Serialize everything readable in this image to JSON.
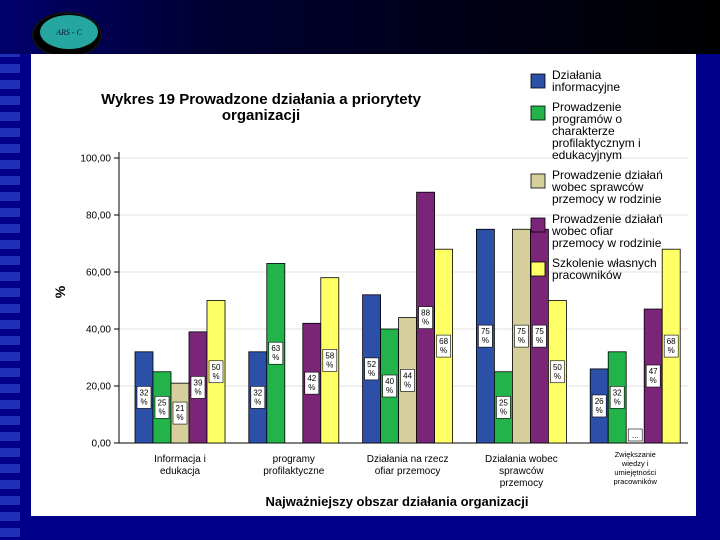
{
  "slide": {
    "logo_text": "ARS - C",
    "colors": {
      "background": "#00008b",
      "panel": "#ffffff"
    }
  },
  "chart_data": {
    "type": "bar",
    "title": [
      "Wykres 19 Prowadzone działania a priorytety",
      "organizacji"
    ],
    "xlabel": "Najważniejszy obszar działania organizacji",
    "ylabel": "%",
    "ylim": [
      0,
      100
    ],
    "yticks": [
      "0,00",
      "20,00",
      "40,00",
      "60,00",
      "80,00",
      "100,00"
    ],
    "categories": [
      [
        "Informacja i",
        "edukacja"
      ],
      [
        "programy",
        "profilaktyczne"
      ],
      [
        "Działania na rzecz",
        "ofiar przemocy"
      ],
      [
        "Działania wobec",
        "sprawców",
        "przemocy"
      ],
      [
        "Zwiększanie",
        "wiedzy i",
        "umiejętności",
        "pracowników"
      ]
    ],
    "series": [
      {
        "name": [
          "Działania",
          "informacyjne"
        ],
        "color": "#2c4fa8",
        "values": [
          32,
          32,
          52,
          75,
          26
        ],
        "labels": [
          "32 %",
          "32 %",
          "52 %",
          "75 %",
          "26 %"
        ]
      },
      {
        "name": [
          "Prowadzenie",
          "programów o",
          "charakterze",
          "profilaktycznym i",
          "edukacyjnym"
        ],
        "color": "#22b44a",
        "values": [
          25,
          63,
          40,
          25,
          32
        ],
        "labels": [
          "25 %",
          "63 %",
          "40 %",
          "25 %",
          "32 %"
        ]
      },
      {
        "name": [
          "Prowadzenie działań",
          "wobec sprawców",
          "przemocy w rodzinie"
        ],
        "color": "#d6cf9c",
        "values": [
          21,
          0,
          44,
          75,
          0
        ],
        "labels": [
          "21 %",
          "",
          "44 %",
          "75 %",
          "..."
        ]
      },
      {
        "name": [
          "Prowadzenie działań",
          "wobec ofiar",
          "przemocy w rodzinie"
        ],
        "color": "#7a2577",
        "values": [
          39,
          42,
          88,
          75,
          47
        ],
        "labels": [
          "39 %",
          "42 %",
          "88 %",
          "75 %",
          "47 %"
        ]
      },
      {
        "name": [
          "Szkolenie własnych",
          "pracowników"
        ],
        "color": "#ffff66",
        "values": [
          50,
          58,
          68,
          50,
          68
        ],
        "labels": [
          "50 %",
          "58 %",
          "68 %",
          "50 %",
          "68 %"
        ]
      }
    ]
  }
}
